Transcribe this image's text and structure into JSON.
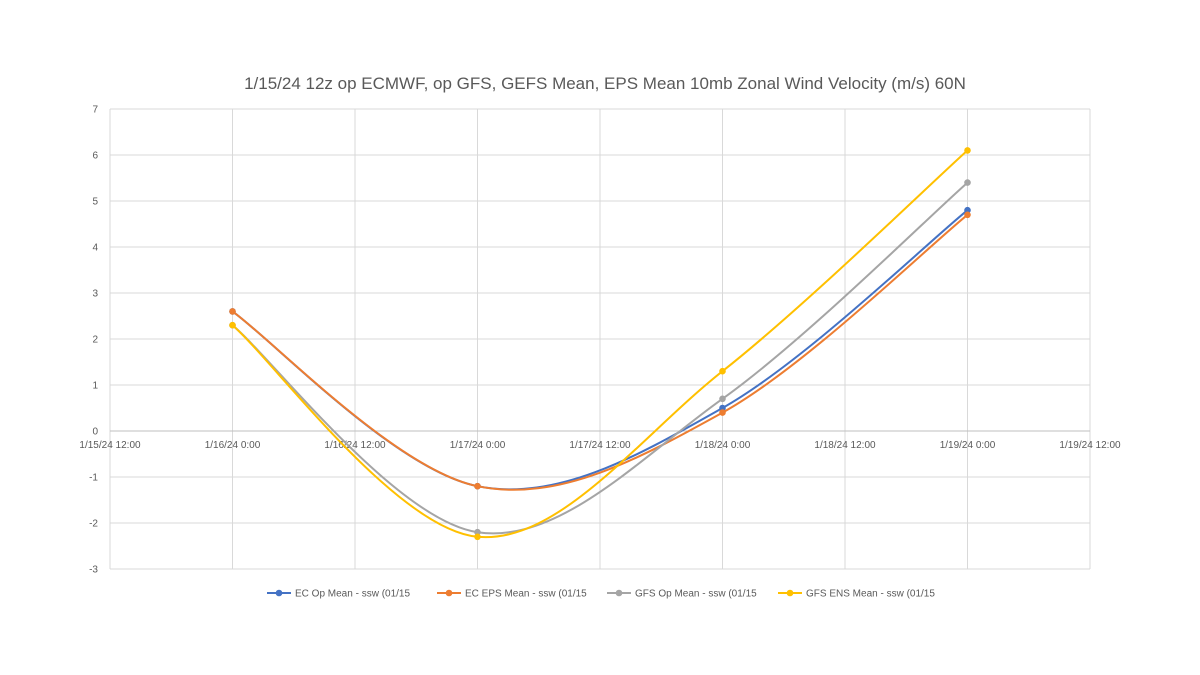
{
  "chart_data": {
    "type": "line",
    "title": "1/15/24 12z op ECMWF, op GFS, GEFS Mean, EPS Mean 10mb Zonal Wind Velocity (m/s) 60N",
    "xlabel": "",
    "ylabel": "",
    "x_ticks": [
      "1/15/24 12:00",
      "1/16/24 0:00",
      "1/16/24 12:00",
      "1/17/24 0:00",
      "1/17/24 12:00",
      "1/18/24 0:00",
      "1/18/24 12:00",
      "1/19/24 0:00",
      "1/19/24 12:00"
    ],
    "xlim": [
      "1/15/24 12:00",
      "1/19/24 12:00"
    ],
    "ylim": [
      -3,
      7
    ],
    "y_ticks": [
      7,
      6,
      5,
      4,
      3,
      2,
      1,
      0,
      -1,
      -2,
      -3
    ],
    "x": [
      "1/16/24 0:00",
      "1/17/24 0:00",
      "1/18/24 0:00",
      "1/19/24 0:00"
    ],
    "series": [
      {
        "name": "EC Op Mean - ssw (01/15",
        "color": "#4472c4",
        "values": [
          2.6,
          -1.2,
          0.5,
          4.8
        ]
      },
      {
        "name": "EC EPS Mean - ssw (01/15",
        "color": "#ed7d31",
        "values": [
          2.6,
          -1.2,
          0.4,
          4.7
        ]
      },
      {
        "name": "GFS Op Mean - ssw (01/15",
        "color": "#a5a5a5",
        "values": [
          2.3,
          -2.2,
          0.7,
          5.4
        ]
      },
      {
        "name": "GFS ENS Mean - ssw (01/15",
        "color": "#ffc000",
        "values": [
          2.3,
          -2.3,
          1.3,
          6.1
        ]
      }
    ],
    "grid": true,
    "legend_position": "bottom",
    "smoothed": true
  }
}
